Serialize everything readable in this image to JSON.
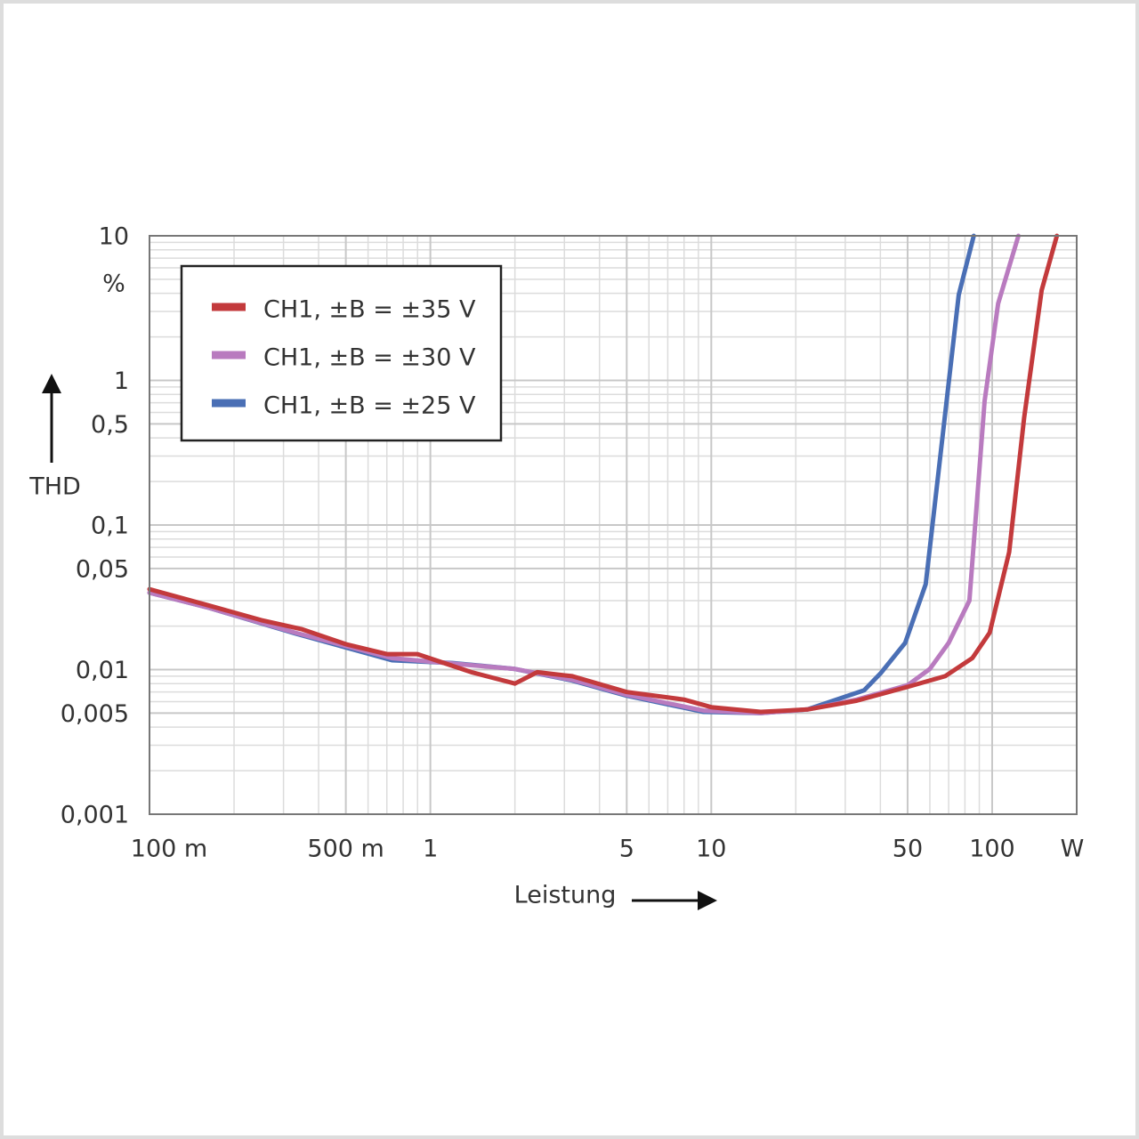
{
  "chart_data": {
    "type": "line",
    "y_label": "THD",
    "y_unit": "%",
    "x_label": "Leistung",
    "x_unit": "W",
    "log_x": true,
    "log_y": true,
    "grid": true,
    "legend": "upper-left",
    "xlim": [
      0.1,
      200
    ],
    "ylim": [
      0.001,
      10
    ],
    "xticks": [
      {
        "value": 0.1,
        "label": "100 m"
      },
      {
        "value": 0.5,
        "label": "500 m"
      },
      1,
      5,
      10,
      50,
      100
    ],
    "yticks": [
      10,
      1,
      {
        "value": 0.5,
        "label": "0,5"
      },
      {
        "value": 0.1,
        "label": "0,1"
      },
      {
        "value": 0.05,
        "label": "0,05"
      },
      {
        "value": 0.01,
        "label": "0,01"
      },
      {
        "value": 0.005,
        "label": "0,005"
      },
      {
        "value": 0.001,
        "label": "0,001"
      }
    ],
    "series": [
      {
        "name": "CH1, ±B = ±35 V",
        "color": "#c33a3c",
        "x": [
          0.1,
          0.16,
          0.25,
          0.35,
          0.5,
          0.7,
          0.9,
          1.4,
          2,
          2.4,
          3.2,
          5,
          8,
          10,
          15,
          22,
          33,
          50,
          68,
          85,
          98,
          115,
          130,
          150,
          170
        ],
        "values": [
          0.036,
          0.028,
          0.022,
          0.019,
          0.015,
          0.0128,
          0.0128,
          0.0096,
          0.008,
          0.0096,
          0.009,
          0.007,
          0.0062,
          0.0055,
          0.0051,
          0.0053,
          0.0061,
          0.0076,
          0.009,
          0.012,
          0.018,
          0.065,
          0.55,
          4.2,
          10
        ]
      },
      {
        "name": "CH1, ±B = ±30 V",
        "color": "#b97bbf",
        "x": [
          0.1,
          0.16,
          0.33,
          0.73,
          1.2,
          2,
          3.2,
          5,
          9.4,
          15,
          22,
          33,
          50,
          60,
          70,
          83,
          94,
          105,
          124
        ],
        "values": [
          0.034,
          0.027,
          0.018,
          0.012,
          0.011,
          0.0101,
          0.0085,
          0.0067,
          0.0052,
          0.005,
          0.0053,
          0.0062,
          0.0078,
          0.0101,
          0.0153,
          0.03,
          0.72,
          3.4,
          10
        ]
      },
      {
        "name": "CH1, ±B = ±25 V",
        "color": "#4a6fb5",
        "x": [
          0.1,
          0.16,
          0.33,
          0.73,
          1.2,
          2,
          3.2,
          5,
          9.4,
          15,
          22,
          35,
          40,
          49,
          58,
          76,
          86
        ],
        "values": [
          0.034,
          0.027,
          0.0178,
          0.0116,
          0.0111,
          0.0101,
          0.0084,
          0.0066,
          0.0051,
          0.005,
          0.0053,
          0.0072,
          0.0094,
          0.0153,
          0.039,
          3.9,
          10
        ]
      }
    ]
  }
}
